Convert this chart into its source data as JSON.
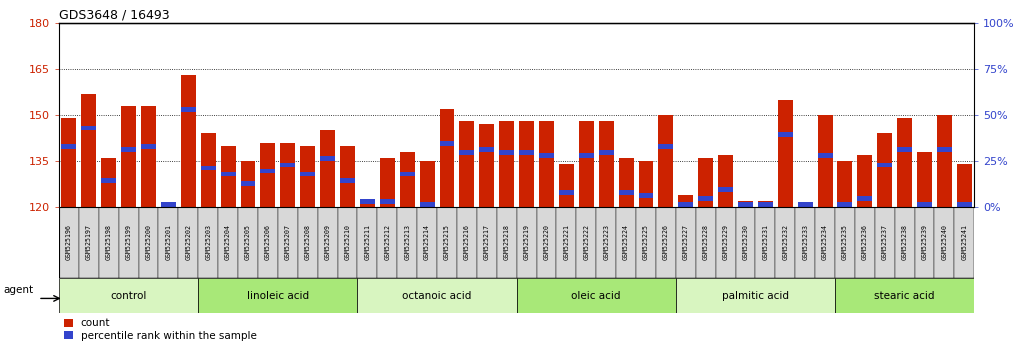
{
  "title": "GDS3648 / 16493",
  "samples": [
    "GSM525196",
    "GSM525197",
    "GSM525198",
    "GSM525199",
    "GSM525200",
    "GSM525201",
    "GSM525202",
    "GSM525203",
    "GSM525204",
    "GSM525205",
    "GSM525206",
    "GSM525207",
    "GSM525208",
    "GSM525209",
    "GSM525210",
    "GSM525211",
    "GSM525212",
    "GSM525213",
    "GSM525214",
    "GSM525215",
    "GSM525216",
    "GSM525217",
    "GSM525218",
    "GSM525219",
    "GSM525220",
    "GSM525221",
    "GSM525222",
    "GSM525223",
    "GSM525224",
    "GSM525225",
    "GSM525226",
    "GSM525227",
    "GSM525228",
    "GSM525229",
    "GSM525230",
    "GSM525231",
    "GSM525232",
    "GSM525233",
    "GSM525234",
    "GSM525235",
    "GSM525236",
    "GSM525237",
    "GSM525238",
    "GSM525239",
    "GSM525240",
    "GSM525241"
  ],
  "counts": [
    149,
    157,
    136,
    153,
    153,
    120,
    163,
    144,
    140,
    135,
    141,
    141,
    140,
    145,
    140,
    121,
    136,
    138,
    135,
    152,
    148,
    147,
    148,
    148,
    148,
    134,
    148,
    148,
    136,
    135,
    150,
    124,
    136,
    137,
    122,
    122,
    155,
    121,
    150,
    135,
    137,
    144,
    149,
    138,
    150,
    134
  ],
  "percentile_positions": [
    139,
    145,
    128,
    138,
    139,
    120,
    151,
    132,
    130,
    127,
    131,
    133,
    130,
    135,
    128,
    121,
    121,
    130,
    120,
    140,
    137,
    138,
    137,
    137,
    136,
    124,
    136,
    137,
    124,
    123,
    139,
    120,
    122,
    125,
    120,
    120,
    143,
    120,
    136,
    120,
    122,
    133,
    138,
    120,
    138,
    120
  ],
  "groups": [
    {
      "name": "control",
      "start": 0,
      "end": 7
    },
    {
      "name": "linoleic acid",
      "start": 7,
      "end": 15
    },
    {
      "name": "octanoic acid",
      "start": 15,
      "end": 23
    },
    {
      "name": "oleic acid",
      "start": 23,
      "end": 31
    },
    {
      "name": "palmitic acid",
      "start": 31,
      "end": 39
    },
    {
      "name": "stearic acid",
      "start": 39,
      "end": 46
    }
  ],
  "group_colors": [
    "#d8f5c0",
    "#a8e878"
  ],
  "ylim_left": [
    120,
    180
  ],
  "yticks_left": [
    120,
    135,
    150,
    165,
    180
  ],
  "ylim_right": [
    0,
    100
  ],
  "yticks_right": [
    0,
    25,
    50,
    75,
    100
  ],
  "bar_color_count": "#cc2200",
  "bar_color_pct": "#3344cc",
  "background_color": "#ffffff",
  "grid_color": "#aaaaaa",
  "tick_label_bg": "#d8d8d8",
  "bar_width": 0.75,
  "label_count": "count",
  "label_pct": "percentile rank within the sample",
  "agent_label": "agent"
}
